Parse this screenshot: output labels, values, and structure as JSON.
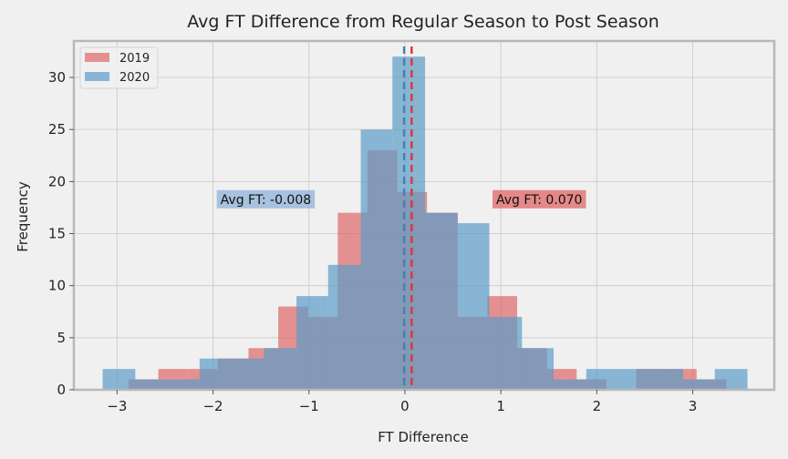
{
  "chart_data": {
    "type": "histogram",
    "title": "Avg FT Difference from Regular Season to Post Season",
    "xlabel": "FT Difference",
    "ylabel": "Frequency",
    "xlim": [
      -3.45,
      3.85
    ],
    "ylim": [
      0,
      33.5
    ],
    "x_ticks": [
      -3,
      -2,
      -1,
      0,
      1,
      2,
      3
    ],
    "x_tick_labels": [
      "−3",
      "−2",
      "−1",
      "0",
      "1",
      "2",
      "3"
    ],
    "y_ticks": [
      0,
      5,
      10,
      15,
      20,
      25,
      30
    ],
    "y_tick_labels": [
      "0",
      "5",
      "10",
      "15",
      "20",
      "25",
      "30"
    ],
    "grid": true,
    "legend": {
      "placement": "top-left",
      "entries": [
        {
          "label": "2019",
          "color": "#e06666"
        },
        {
          "label": "2020",
          "color": "#5b9bc8"
        }
      ]
    },
    "series": [
      {
        "name": "2019",
        "color": "#e06666",
        "opacity": 0.7,
        "bins": [
          {
            "x0": -2.88,
            "x1": -2.57,
            "count": 1
          },
          {
            "x0": -2.57,
            "x1": -2.26,
            "count": 2
          },
          {
            "x0": -2.26,
            "x1": -1.95,
            "count": 2
          },
          {
            "x0": -1.95,
            "x1": -1.63,
            "count": 3
          },
          {
            "x0": -1.63,
            "x1": -1.32,
            "count": 4
          },
          {
            "x0": -1.32,
            "x1": -1.01,
            "count": 8
          },
          {
            "x0": -1.01,
            "x1": -0.7,
            "count": 7
          },
          {
            "x0": -0.7,
            "x1": -0.39,
            "count": 17
          },
          {
            "x0": -0.39,
            "x1": -0.08,
            "count": 23
          },
          {
            "x0": -0.08,
            "x1": 0.23,
            "count": 19
          },
          {
            "x0": 0.23,
            "x1": 0.55,
            "count": 17
          },
          {
            "x0": 0.55,
            "x1": 0.86,
            "count": 7
          },
          {
            "x0": 0.86,
            "x1": 1.17,
            "count": 9
          },
          {
            "x0": 1.17,
            "x1": 1.48,
            "count": 4
          },
          {
            "x0": 1.48,
            "x1": 1.79,
            "count": 2
          },
          {
            "x0": 1.79,
            "x1": 2.1,
            "count": 1
          },
          {
            "x0": 2.1,
            "x1": 2.41,
            "count": 0
          },
          {
            "x0": 2.41,
            "x1": 2.73,
            "count": 2
          },
          {
            "x0": 2.73,
            "x1": 3.04,
            "count": 2
          },
          {
            "x0": 3.04,
            "x1": 3.35,
            "count": 1
          }
        ]
      },
      {
        "name": "2020",
        "color": "#5b9bc8",
        "opacity": 0.7,
        "bins": [
          {
            "x0": -3.15,
            "x1": -2.81,
            "count": 2
          },
          {
            "x0": -2.81,
            "x1": -2.48,
            "count": 1
          },
          {
            "x0": -2.48,
            "x1": -2.14,
            "count": 1
          },
          {
            "x0": -2.14,
            "x1": -1.81,
            "count": 3
          },
          {
            "x0": -1.81,
            "x1": -1.47,
            "count": 3
          },
          {
            "x0": -1.47,
            "x1": -1.13,
            "count": 4
          },
          {
            "x0": -1.13,
            "x1": -0.8,
            "count": 9
          },
          {
            "x0": -0.8,
            "x1": -0.46,
            "count": 12
          },
          {
            "x0": -0.46,
            "x1": -0.13,
            "count": 25
          },
          {
            "x0": -0.13,
            "x1": 0.21,
            "count": 32
          },
          {
            "x0": 0.21,
            "x1": 0.55,
            "count": 17
          },
          {
            "x0": 0.55,
            "x1": 0.88,
            "count": 16
          },
          {
            "x0": 0.88,
            "x1": 1.22,
            "count": 7
          },
          {
            "x0": 1.22,
            "x1": 1.55,
            "count": 4
          },
          {
            "x0": 1.55,
            "x1": 1.89,
            "count": 1
          },
          {
            "x0": 1.89,
            "x1": 2.22,
            "count": 2
          },
          {
            "x0": 2.22,
            "x1": 2.56,
            "count": 2
          },
          {
            "x0": 2.56,
            "x1": 2.9,
            "count": 2
          },
          {
            "x0": 2.9,
            "x1": 3.23,
            "count": 1
          },
          {
            "x0": 3.23,
            "x1": 3.57,
            "count": 2
          }
        ]
      }
    ],
    "mean_lines": [
      {
        "series": "2020",
        "x": -0.008,
        "color": "#4a7fb0"
      },
      {
        "series": "2019",
        "x": 0.07,
        "color": "#d93a3a"
      }
    ],
    "annotations": [
      {
        "text": "Avg FT: -0.008",
        "x": -1.45,
        "y": 18.3,
        "box_color": "#8fb3d9"
      },
      {
        "text": "Avg FT: 0.070",
        "x": 1.4,
        "y": 18.3,
        "box_color": "#e06666"
      }
    ]
  }
}
